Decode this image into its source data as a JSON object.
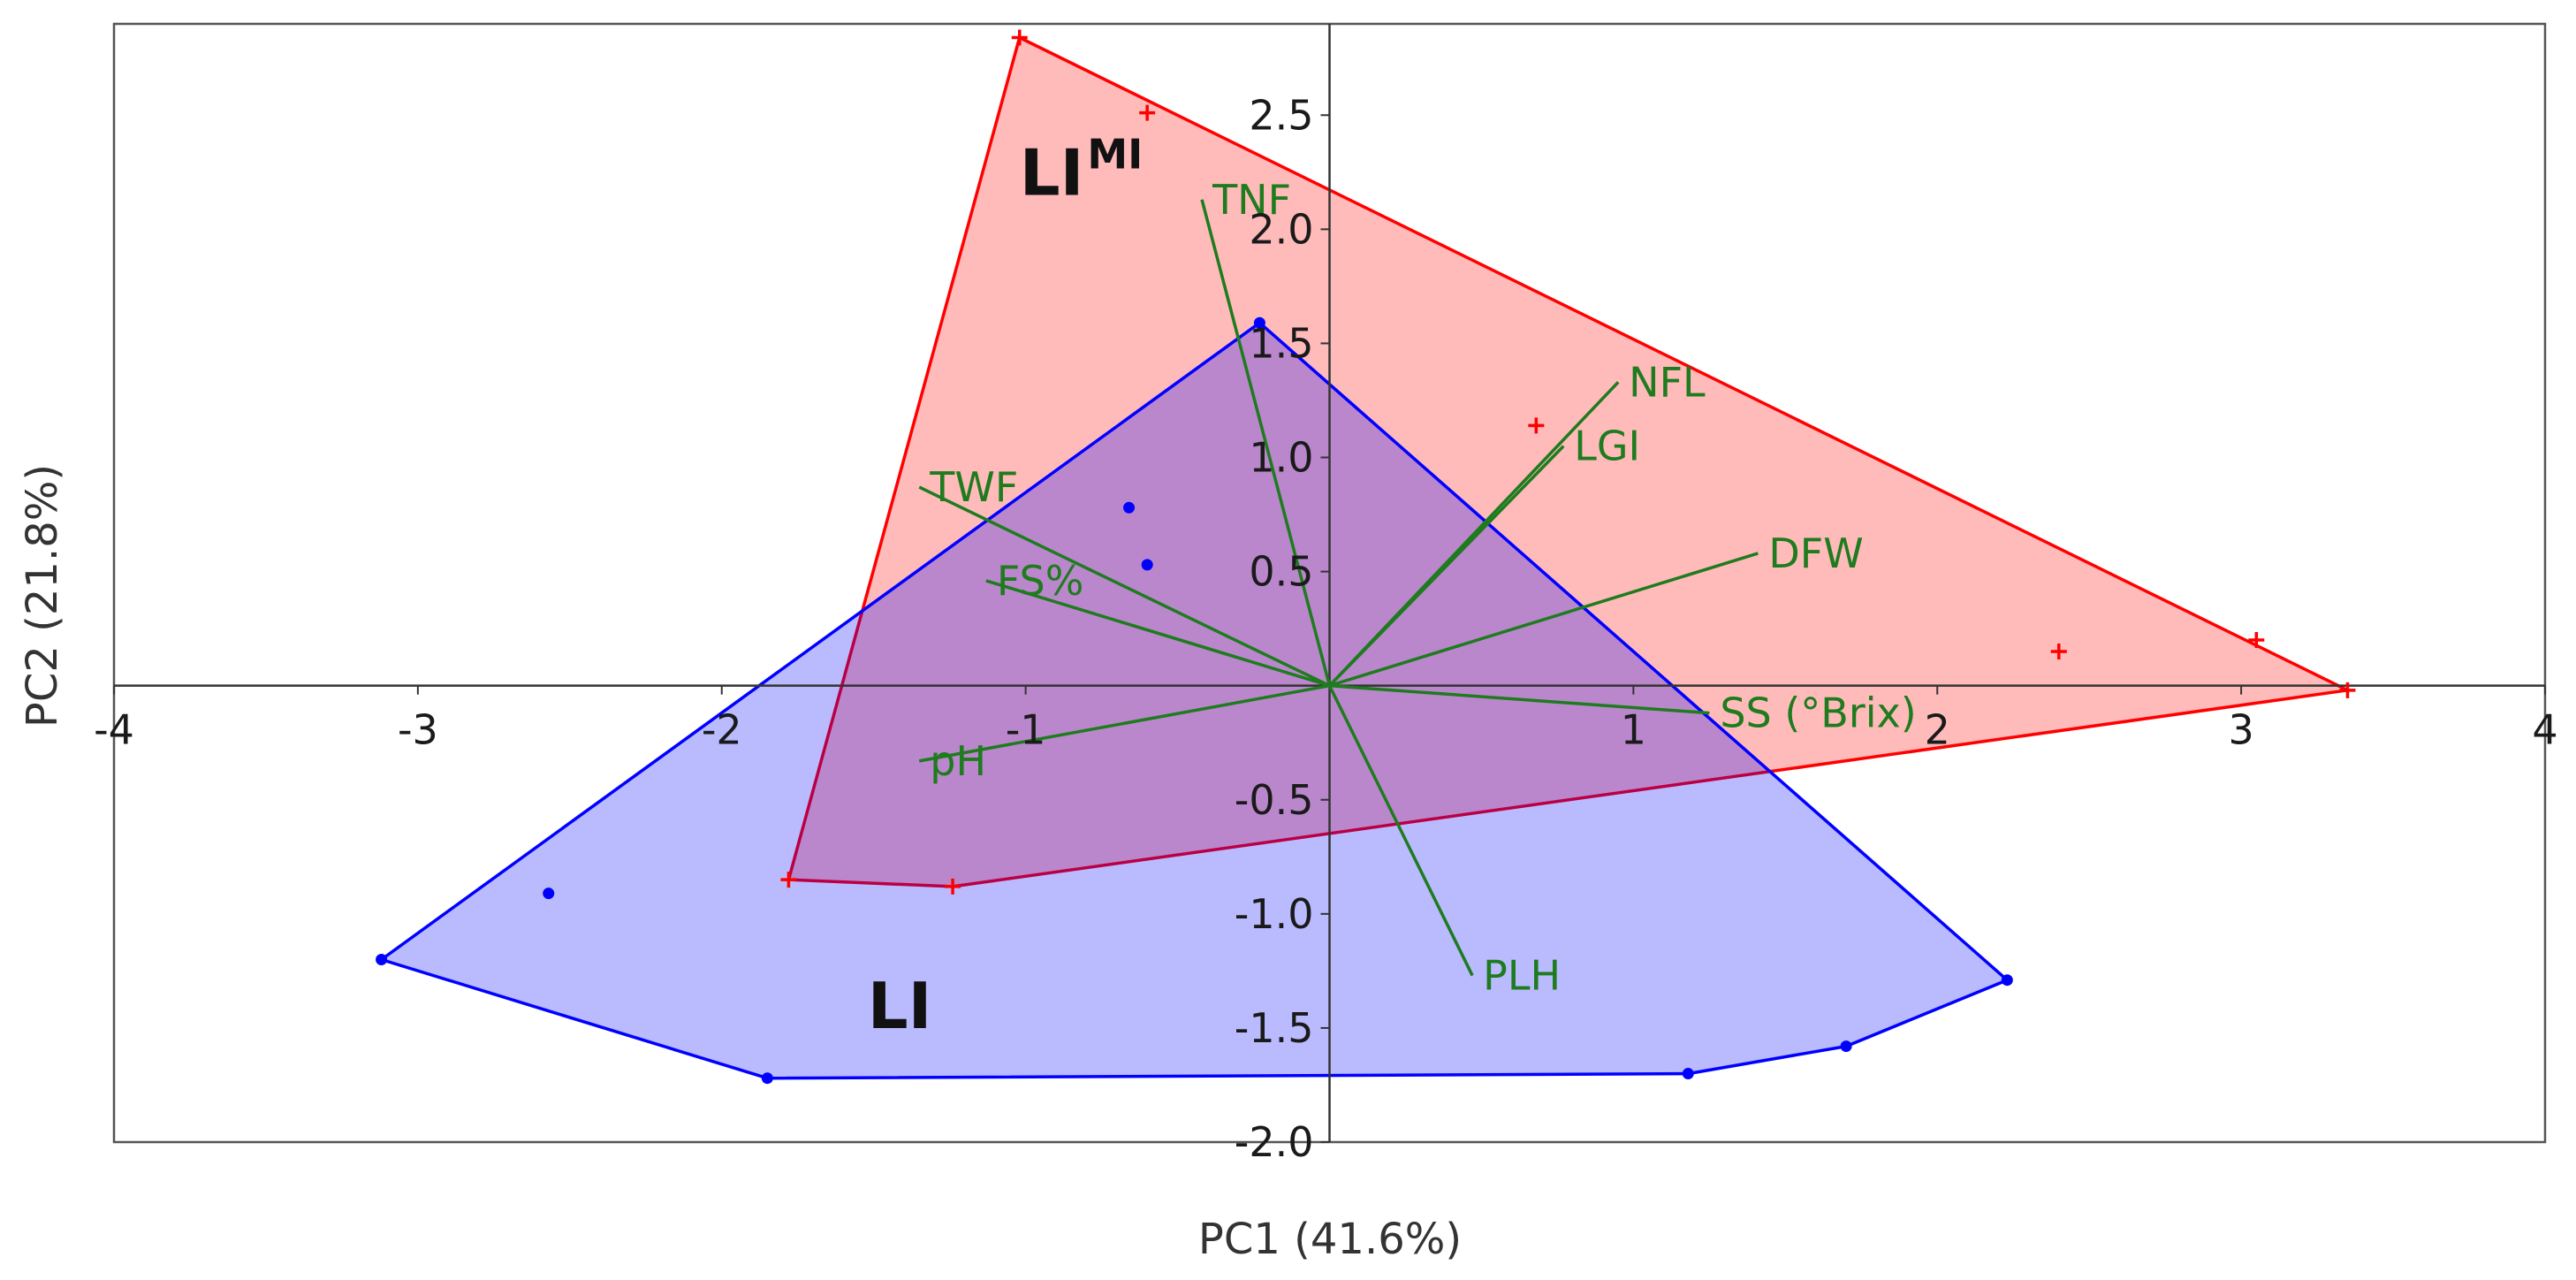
{
  "chart_data": {
    "type": "scatter",
    "title": "",
    "xlabel": "PC1 (41.6%)",
    "ylabel": "PC2 (21.8%)",
    "xlim": [
      -4,
      4
    ],
    "ylim": [
      -2.0,
      2.9
    ],
    "grid": false,
    "x_ticks": [
      -4,
      -3,
      -2,
      -1,
      1,
      2,
      3,
      4
    ],
    "x_tick_labels": [
      "-4",
      "-3",
      "-2",
      "-1",
      "1",
      "2",
      "3",
      "4"
    ],
    "y_ticks": [
      -2.0,
      -1.5,
      -1.0,
      -0.5,
      0.5,
      1.0,
      1.5,
      2.0,
      2.5
    ],
    "y_tick_labels": [
      "-2.0",
      "-1.5",
      "-1.0",
      "-0.5",
      "0.5",
      "1.0",
      "1.5",
      "2.0",
      "2.5"
    ],
    "groups": [
      {
        "label": "LI",
        "superscript": "MI",
        "marker": "plus",
        "color": "#ff0000",
        "fill": "#ff0000",
        "points": [
          [
            -1.02,
            2.84
          ],
          [
            -0.6,
            2.51
          ],
          [
            0.68,
            1.14
          ],
          [
            2.4,
            0.15
          ],
          [
            3.05,
            0.2
          ],
          [
            3.35,
            -0.02
          ],
          [
            -1.24,
            -0.88
          ],
          [
            -1.78,
            -0.85
          ]
        ],
        "hull": [
          [
            -1.02,
            2.84
          ],
          [
            3.35,
            -0.02
          ],
          [
            -1.24,
            -0.88
          ],
          [
            -1.78,
            -0.85
          ]
        ],
        "label_pos": [
          -1.02,
          2.15
        ]
      },
      {
        "label": "LI",
        "superscript": "",
        "marker": "dot",
        "color": "#0000ff",
        "fill": "#0000ff",
        "points": [
          [
            -0.23,
            1.59
          ],
          [
            -0.66,
            0.78
          ],
          [
            -0.6,
            0.53
          ],
          [
            -2.57,
            -0.91
          ],
          [
            -3.12,
            -1.2
          ],
          [
            -1.85,
            -1.72
          ],
          [
            1.18,
            -1.7
          ],
          [
            1.7,
            -1.58
          ],
          [
            2.23,
            -1.29
          ]
        ],
        "hull": [
          [
            -0.23,
            1.59
          ],
          [
            2.23,
            -1.29
          ],
          [
            1.7,
            -1.58
          ],
          [
            1.18,
            -1.7
          ],
          [
            -1.85,
            -1.72
          ],
          [
            -3.12,
            -1.2
          ]
        ],
        "label_pos": [
          -1.52,
          -1.5
        ]
      }
    ],
    "vectors": {
      "color": "#1e7b1e",
      "items": [
        {
          "name": "TNF",
          "x": -0.42,
          "y": 2.13
        },
        {
          "name": "NFL",
          "x": 0.95,
          "y": 1.33
        },
        {
          "name": "LGI",
          "x": 0.77,
          "y": 1.05
        },
        {
          "name": "DFW",
          "x": 1.41,
          "y": 0.58
        },
        {
          "name": "TWF",
          "x": -1.35,
          "y": 0.87
        },
        {
          "name": "FS%",
          "x": -1.13,
          "y": 0.46
        },
        {
          "name": "SS (°Brix)",
          "x": 1.25,
          "y": -0.12
        },
        {
          "name": "pH",
          "x": -1.35,
          "y": -0.33
        },
        {
          "name": "PLH",
          "x": 0.47,
          "y": -1.27
        }
      ]
    }
  }
}
